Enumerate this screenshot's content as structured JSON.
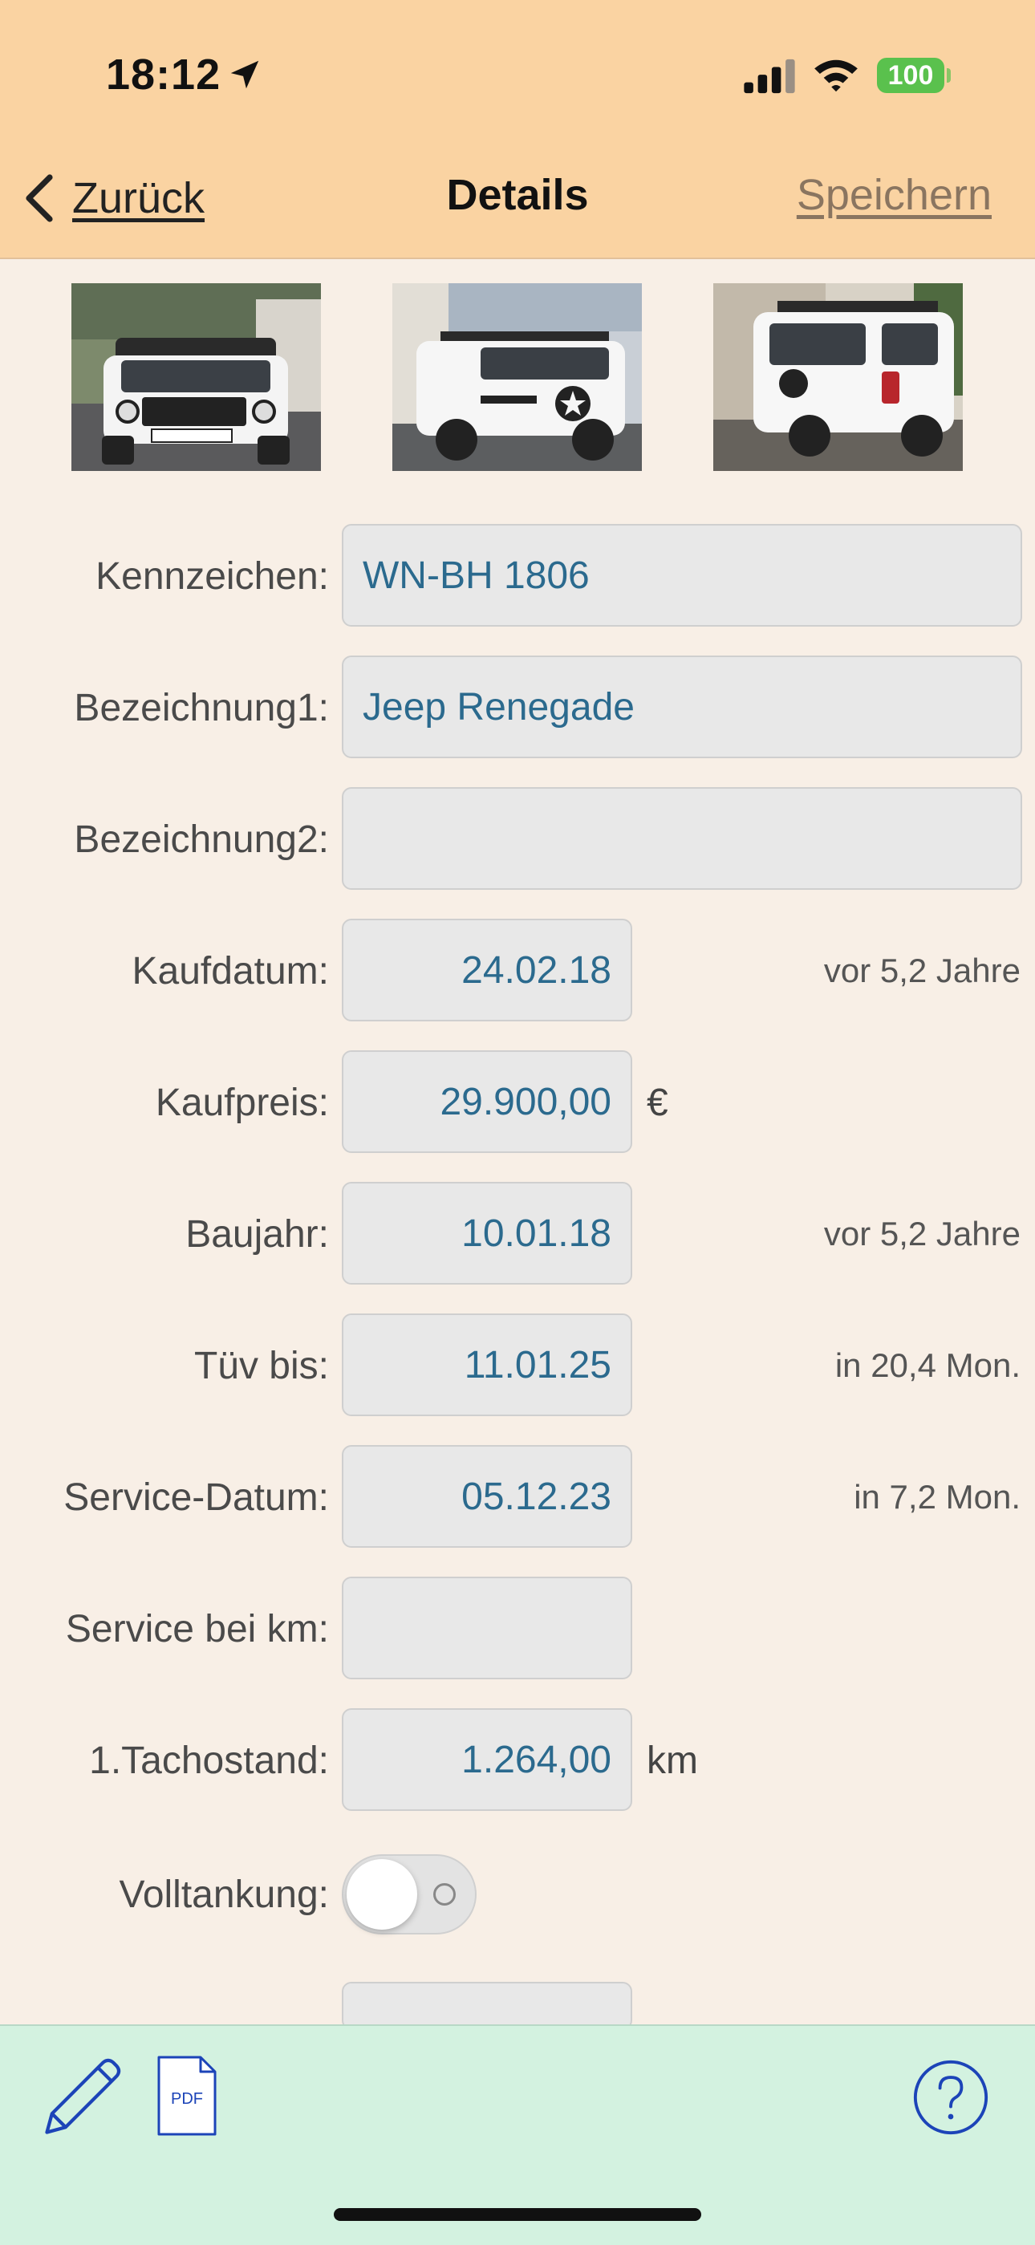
{
  "status_bar": {
    "time": "18:12",
    "battery": "100"
  },
  "nav": {
    "back_label": "Zurück",
    "title": "Details",
    "save_label": "Speichern"
  },
  "photos": [
    {
      "name": "vehicle-photo-front"
    },
    {
      "name": "vehicle-photo-side"
    },
    {
      "name": "vehicle-photo-rear"
    }
  ],
  "form": {
    "kennzeichen": {
      "label": "Kennzeichen:",
      "value": "WN-BH 1806"
    },
    "bezeichnung1": {
      "label": "Bezeichnung1:",
      "value": "Jeep Renegade"
    },
    "bezeichnung2": {
      "label": "Bezeichnung2:",
      "value": ""
    },
    "kaufdatum": {
      "label": "Kaufdatum:",
      "value": "24.02.18",
      "relative": "vor 5,2 Jahre"
    },
    "kaufpreis": {
      "label": "Kaufpreis:",
      "value": "29.900,00",
      "unit": "€"
    },
    "baujahr": {
      "label": "Baujahr:",
      "value": "10.01.18",
      "relative": "vor 5,2 Jahre"
    },
    "tuev": {
      "label": "Tüv bis:",
      "value": "11.01.25",
      "relative": "in 20,4 Mon."
    },
    "service_datum": {
      "label": "Service-Datum:",
      "value": "05.12.23",
      "relative": "in 7,2 Mon."
    },
    "service_km": {
      "label": "Service bei km:",
      "value": ""
    },
    "tachostand": {
      "label": "1.Tachostand:",
      "value": "1.264,00",
      "unit": "km"
    },
    "volltankung": {
      "label": "Volltankung:",
      "on": false
    }
  },
  "toolbar": {
    "pdf_label": "PDF"
  },
  "colors": {
    "header_bg": "#fad3a2",
    "page_bg": "#f8efe6",
    "footer_bg": "#d3f2e0",
    "value_text": "#2b6a8e",
    "icon_blue": "#1c44b8",
    "battery_green": "#5ac14d"
  },
  "icons": [
    "location-arrow-icon",
    "signal-icon",
    "wifi-icon",
    "battery-icon",
    "chevron-left-icon",
    "pencil-icon",
    "pdf-document-icon",
    "help-icon"
  ]
}
